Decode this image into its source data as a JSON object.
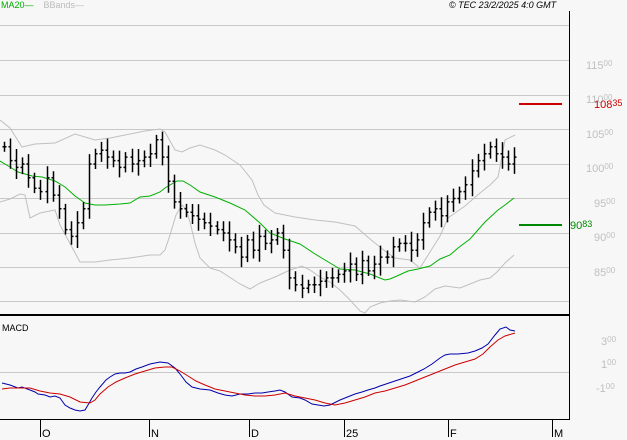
{
  "legend": {
    "ma_label": "MA20",
    "ma_dash": "—",
    "bb_label": "BBands",
    "bb_dash": "—"
  },
  "copyright": "© TEC 23/2/2025 4:0 GMT",
  "colors": {
    "background": "#f7f7f7",
    "grid": "#c8c8c8",
    "ma20": "#00b000",
    "bbands": "#c0c0c0",
    "price_bars": "#000000",
    "resistance": "#cc0000",
    "support": "#008800",
    "macd": "#0000aa",
    "signal": "#cc0000",
    "axis_labels": "#c0c0c0"
  },
  "markers": {
    "resistance": {
      "value": "108",
      "decimals": "35",
      "full": 10835
    },
    "support": {
      "value": "90",
      "decimals": "83",
      "full": 9083
    }
  },
  "macd_panel": {
    "title": "MACD",
    "y_ticks": [
      {
        "main": "3",
        "dec": "00",
        "value": 300
      },
      {
        "main": "1",
        "dec": "00",
        "value": 100
      },
      {
        "main": "-1",
        "dec": "00",
        "value": -100
      }
    ]
  },
  "chart_data": [
    {
      "type": "bar",
      "subtype": "ohlc",
      "title": "",
      "xlabel": "",
      "ylabel": "",
      "x_tick_labels": [
        "O",
        "N",
        "D",
        "25",
        "F",
        "M"
      ],
      "y_tick_labels": [
        "11500",
        "11000",
        "10500",
        "10000",
        "9500",
        "9000",
        "8500"
      ],
      "ylim": [
        8000,
        11800
      ],
      "grid": true,
      "legend": [
        "MA20",
        "BBands"
      ],
      "horizontal_lines": [
        {
          "label": "108.35",
          "value": 10835,
          "color": "#cc0000"
        },
        {
          "label": "90.83",
          "value": 9083,
          "color": "#008800"
        }
      ],
      "series": [
        {
          "name": "price_close_approx",
          "values": [
            10250,
            10050,
            9950,
            10000,
            9800,
            9650,
            9600,
            9800,
            9550,
            9350,
            9050,
            8950,
            9150,
            9350,
            10000,
            10150,
            10200,
            10100,
            10050,
            9950,
            10100,
            10000,
            10050,
            10100,
            10150,
            10350,
            10100,
            9750,
            9450,
            9350,
            9300,
            9250,
            9200,
            9150,
            9100,
            9050,
            9000,
            8900,
            8800,
            8650,
            8900,
            8750,
            8950,
            8850,
            8900,
            9000,
            8750,
            8350,
            8250,
            8200,
            8250,
            8250,
            8300,
            8350,
            8350,
            8400,
            8450,
            8550,
            8400,
            8600,
            8450,
            8550,
            8650,
            8650,
            8800,
            8850,
            8850,
            8750,
            8900,
            9150,
            9300,
            9350,
            9250,
            9450,
            9500,
            9600,
            9700,
            9900,
            10050,
            10150,
            10250,
            10150,
            10100,
            10000,
            10100
          ]
        },
        {
          "name": "MA20",
          "values": [
            10000,
            9950,
            9880,
            9800,
            9720,
            9680,
            9690,
            9700,
            9720,
            9780,
            9810,
            9850,
            9920,
            9990,
            10060,
            10100,
            10080,
            10000,
            9900,
            9800,
            9700,
            9600,
            9500,
            9380,
            9250,
            9100,
            8950,
            8850,
            8780,
            8680,
            8550,
            8480,
            8430,
            8520,
            8680,
            8880,
            9050,
            9200,
            9400,
            9580
          ]
        },
        {
          "name": "BBands_upper",
          "values": [
            10600,
            10300,
            10250,
            10250,
            10350,
            10300,
            10400,
            10500,
            10350,
            10450,
            10400,
            10250,
            10000,
            9450,
            9200,
            9050,
            9050,
            8950,
            8650,
            8400,
            8850,
            9150,
            9550,
            9850,
            10050,
            10400,
            10500
          ]
        },
        {
          "name": "BBands_lower",
          "values": [
            9400,
            9400,
            9300,
            8950,
            8850,
            8800,
            8850,
            8950,
            9400,
            9300,
            9000,
            8600,
            8450,
            8200,
            8000,
            8050,
            8100,
            8150,
            8250,
            8300,
            8450,
            8550,
            8650,
            8700,
            8900
          ]
        }
      ]
    },
    {
      "type": "line",
      "title": "MACD",
      "y_tick_labels": [
        "300",
        "100",
        "-100"
      ],
      "ylim": [
        -400,
        600
      ],
      "grid": false,
      "series": [
        {
          "name": "MACD",
          "color": "#0000aa",
          "values": [
            -40,
            -80,
            -90,
            -80,
            -150,
            -320,
            -280,
            100,
            180,
            220,
            300,
            250,
            100,
            -60,
            -100,
            -40,
            -70,
            -40,
            -150,
            -230,
            -60,
            20,
            80,
            150,
            170,
            250,
            390,
            460,
            400,
            360
          ]
        },
        {
          "name": "Signal",
          "color": "#cc0000",
          "values": [
            -80,
            -80,
            -90,
            -110,
            -150,
            -250,
            -200,
            -30,
            70,
            140,
            240,
            220,
            90,
            -20,
            -60,
            -40,
            -80,
            -60,
            -110,
            -180,
            -140,
            -50,
            20,
            80,
            140,
            200,
            310,
            400,
            420
          ]
        }
      ]
    }
  ]
}
